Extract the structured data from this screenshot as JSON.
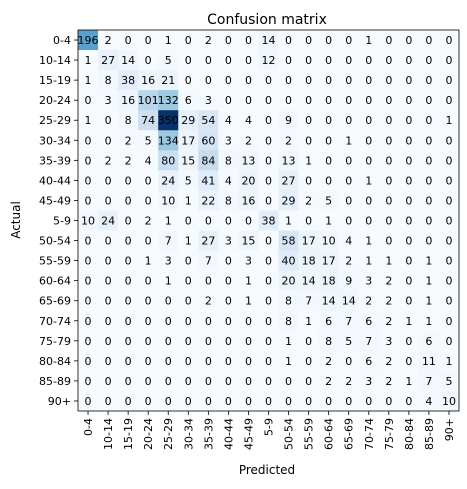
{
  "chart_data": {
    "type": "heatmap",
    "title": "Confusion matrix",
    "xlabel": "Predicted",
    "ylabel": "Actual",
    "row_labels": [
      "0-4",
      "10-14",
      "15-19",
      "20-24",
      "25-29",
      "30-34",
      "35-39",
      "40-44",
      "45-49",
      "5-9",
      "50-54",
      "55-59",
      "60-64",
      "65-69",
      "70-74",
      "75-79",
      "80-84",
      "85-89",
      "90+"
    ],
    "col_labels": [
      "0-4",
      "10-14",
      "15-19",
      "20-24",
      "25-29",
      "30-34",
      "35-39",
      "40-44",
      "45-49",
      "5-9",
      "50-54",
      "55-59",
      "60-64",
      "65-69",
      "70-74",
      "75-79",
      "80-84",
      "85-89",
      "90+"
    ],
    "cell_labels": [
      [
        "196",
        "2",
        "0",
        "0",
        "1",
        "0",
        "2",
        "0",
        "0",
        "14",
        "0",
        "0",
        "0",
        "0",
        "1",
        "0",
        "0",
        "0",
        "0"
      ],
      [
        "1",
        "27",
        "14",
        "0",
        "5",
        "0",
        "0",
        "0",
        "0",
        "12",
        "0",
        "0",
        "0",
        "0",
        "0",
        "0",
        "0",
        "0",
        "0"
      ],
      [
        "1",
        "8",
        "38",
        "16",
        "21",
        "0",
        "0",
        "0",
        "0",
        "0",
        "0",
        "0",
        "0",
        "0",
        "0",
        "0",
        "0",
        "0",
        "0"
      ],
      [
        "0",
        "3",
        "16",
        "101",
        "132",
        "6",
        "3",
        "0",
        "0",
        "0",
        "0",
        "0",
        "0",
        "0",
        "0",
        "0",
        "0",
        "0",
        "0"
      ],
      [
        "1",
        "0",
        "8",
        "74",
        "350",
        "29",
        "54",
        "4",
        "4",
        "0",
        "9",
        "0",
        "0",
        "0",
        "0",
        "0",
        "0",
        "0",
        "1"
      ],
      [
        "0",
        "0",
        "2",
        "5",
        "134",
        "17",
        "60",
        "3",
        "2",
        "0",
        "2",
        "0",
        "0",
        "1",
        "0",
        "0",
        "0",
        "0",
        "0"
      ],
      [
        "0",
        "2",
        "2",
        "4",
        "80",
        "15",
        "84",
        "8",
        "13",
        "0",
        "13",
        "1",
        "0",
        "0",
        "0",
        "0",
        "0",
        "0",
        "0"
      ],
      [
        "0",
        "0",
        "0",
        "0",
        "24",
        "5",
        "41",
        "4",
        "20",
        "0",
        "27",
        "0",
        "0",
        "0",
        "1",
        "0",
        "0",
        "0",
        "0"
      ],
      [
        "0",
        "0",
        "0",
        "0",
        "10",
        "1",
        "22",
        "8",
        "16",
        "0",
        "29",
        "2",
        "5",
        "0",
        "0",
        "0",
        "0",
        "0",
        "0"
      ],
      [
        "10",
        "24",
        "0",
        "2",
        "1",
        "0",
        "0",
        "0",
        "0",
        "38",
        "1",
        "0",
        "1",
        "0",
        "0",
        "0",
        "0",
        "0",
        "0"
      ],
      [
        "0",
        "0",
        "0",
        "0",
        "7",
        "1",
        "27",
        "3",
        "15",
        "0",
        "58",
        "17",
        "10",
        "4",
        "1",
        "0",
        "0",
        "0",
        "0"
      ],
      [
        "0",
        "0",
        "0",
        "1",
        "3",
        "0",
        "7",
        "0",
        "3",
        "0",
        "40",
        "18",
        "17",
        "2",
        "1",
        "1",
        "0",
        "1",
        "0"
      ],
      [
        "0",
        "0",
        "0",
        "0",
        "1",
        "0",
        "0",
        "0",
        "1",
        "0",
        "20",
        "14",
        "18",
        "9",
        "3",
        "2",
        "0",
        "1",
        "0"
      ],
      [
        "0",
        "0",
        "0",
        "0",
        "0",
        "0",
        "2",
        "0",
        "1",
        "0",
        "8",
        "7",
        "14",
        "14",
        "2",
        "2",
        "0",
        "1",
        "0"
      ],
      [
        "0",
        "0",
        "0",
        "0",
        "0",
        "0",
        "0",
        "0",
        "0",
        "0",
        "8",
        "1",
        "6",
        "7",
        "6",
        "2",
        "1",
        "1",
        "0"
      ],
      [
        "0",
        "0",
        "0",
        "0",
        "0",
        "0",
        "0",
        "0",
        "0",
        "0",
        "1",
        "0",
        "8",
        "5",
        "7",
        "3",
        "0",
        "6",
        "0"
      ],
      [
        "0",
        "0",
        "0",
        "0",
        "0",
        "0",
        "0",
        "0",
        "0",
        "0",
        "1",
        "0",
        "2",
        "0",
        "6",
        "2",
        "0",
        "11",
        "1"
      ],
      [
        "0",
        "0",
        "0",
        "0",
        "0",
        "0",
        "0",
        "0",
        "0",
        "0",
        "0",
        "0",
        "2",
        "2",
        "3",
        "2",
        "1",
        "7",
        "5"
      ],
      [
        "0",
        "0",
        "0",
        "0",
        "0",
        "0",
        "0",
        "0",
        "0",
        "0",
        "0",
        "0",
        "0",
        "0",
        "0",
        "0",
        "0",
        "4",
        "10"
      ]
    ],
    "colormap": "Blues",
    "vmin": 0,
    "vmax": 350,
    "grid": false,
    "colorbar": false
  }
}
